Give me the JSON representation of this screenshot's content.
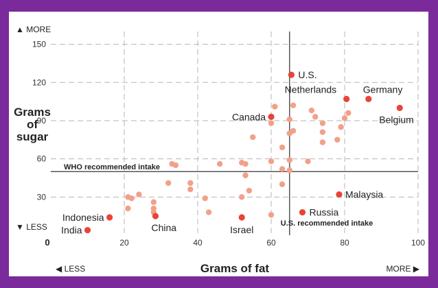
{
  "chart_data": {
    "type": "scatter",
    "title": "",
    "xlabel": "Grams of fat",
    "ylabel": [
      "Grams",
      "of",
      "sugar"
    ],
    "xlim": [
      0,
      100
    ],
    "ylim": [
      0,
      160
    ],
    "x_ticks": [
      20,
      40,
      60,
      80,
      100
    ],
    "x_zero_label": "0",
    "y_ticks": [
      30,
      60,
      90,
      120,
      150
    ],
    "y_more_label": "▲ MORE",
    "y_less_label": "▼ LESS",
    "x_less_label": "◀ LESS",
    "x_more_label": "MORE ▶",
    "grid": true,
    "reference_lines": {
      "who": {
        "axis": "y",
        "value": 50,
        "label": "WHO recommended intake"
      },
      "us": {
        "axis": "x",
        "value": 65,
        "label": "U.S. recommended intake"
      }
    },
    "colors": {
      "highlight": "#e8443a",
      "other": "#f2a08a",
      "reference_line": "#555555",
      "grid": "#b5b5b5",
      "frame": "#7b2a9b"
    },
    "highlighted_points": [
      {
        "label": "U.S.",
        "x": 65.5,
        "y": 126
      },
      {
        "label": "Netherlands",
        "x": 80.5,
        "y": 107
      },
      {
        "label": "Germany",
        "x": 86.5,
        "y": 107
      },
      {
        "label": "Belgium",
        "x": 95,
        "y": 100
      },
      {
        "label": "Canada",
        "x": 60,
        "y": 93
      },
      {
        "label": "Malaysia",
        "x": 78.5,
        "y": 32
      },
      {
        "label": "Russia",
        "x": 68.5,
        "y": 18
      },
      {
        "label": "Israel",
        "x": 52,
        "y": 14
      },
      {
        "label": "China",
        "x": 28.5,
        "y": 15
      },
      {
        "label": "Indonesia",
        "x": 16,
        "y": 14
      },
      {
        "label": "India",
        "x": 10,
        "y": 4
      }
    ],
    "other_points": [
      {
        "x": 61,
        "y": 101
      },
      {
        "x": 66,
        "y": 102
      },
      {
        "x": 71,
        "y": 98
      },
      {
        "x": 72,
        "y": 93
      },
      {
        "x": 65,
        "y": 91
      },
      {
        "x": 60,
        "y": 88
      },
      {
        "x": 74,
        "y": 88
      },
      {
        "x": 80,
        "y": 92
      },
      {
        "x": 81,
        "y": 96
      },
      {
        "x": 79,
        "y": 85
      },
      {
        "x": 74,
        "y": 81
      },
      {
        "x": 65,
        "y": 80
      },
      {
        "x": 66,
        "y": 82
      },
      {
        "x": 74,
        "y": 73
      },
      {
        "x": 78,
        "y": 75
      },
      {
        "x": 63,
        "y": 69
      },
      {
        "x": 55,
        "y": 77
      },
      {
        "x": 60,
        "y": 58
      },
      {
        "x": 65,
        "y": 59
      },
      {
        "x": 70,
        "y": 58
      },
      {
        "x": 63,
        "y": 52
      },
      {
        "x": 65,
        "y": 51
      },
      {
        "x": 52,
        "y": 57
      },
      {
        "x": 53,
        "y": 56
      },
      {
        "x": 46,
        "y": 56
      },
      {
        "x": 33,
        "y": 56
      },
      {
        "x": 34,
        "y": 55
      },
      {
        "x": 53,
        "y": 47
      },
      {
        "x": 32,
        "y": 41
      },
      {
        "x": 38,
        "y": 41
      },
      {
        "x": 38,
        "y": 36
      },
      {
        "x": 63,
        "y": 40
      },
      {
        "x": 54,
        "y": 35
      },
      {
        "x": 52,
        "y": 30
      },
      {
        "x": 42,
        "y": 29
      },
      {
        "x": 21,
        "y": 30
      },
      {
        "x": 22,
        "y": 29
      },
      {
        "x": 24,
        "y": 32
      },
      {
        "x": 28,
        "y": 26
      },
      {
        "x": 21,
        "y": 21
      },
      {
        "x": 28,
        "y": 21
      },
      {
        "x": 28,
        "y": 18
      },
      {
        "x": 43,
        "y": 18
      },
      {
        "x": 60,
        "y": 16
      }
    ]
  }
}
